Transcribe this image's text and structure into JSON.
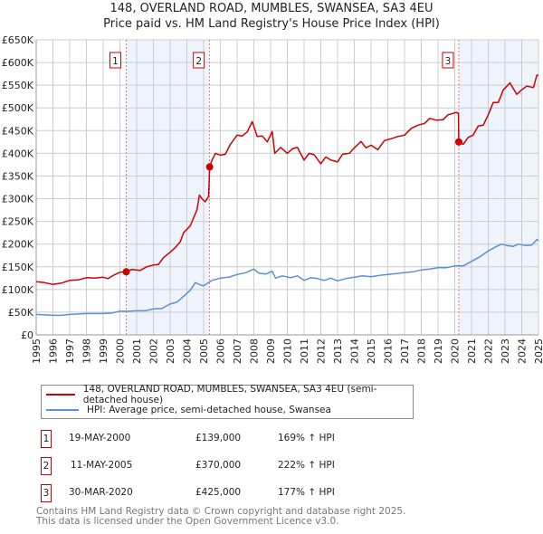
{
  "title": "148, OVERLAND ROAD, MUMBLES, SWANSEA, SA3 4EU",
  "subtitle": "Price paid vs. HM Land Registry's House Price Index (HPI)",
  "colors": {
    "property": "#cc0000",
    "hpi": "#5b8fd6",
    "shade": "#eef3fc",
    "grid": "#cccccc"
  },
  "chart_data": {
    "type": "line",
    "xlim": [
      1995,
      2025
    ],
    "ylim": [
      0,
      650000
    ],
    "yticks": [
      0,
      50000,
      100000,
      150000,
      200000,
      250000,
      300000,
      350000,
      400000,
      450000,
      500000,
      550000,
      600000,
      650000
    ],
    "ytick_labels": [
      "£0",
      "£50K",
      "£100K",
      "£150K",
      "£200K",
      "£250K",
      "£300K",
      "£350K",
      "£400K",
      "£450K",
      "£500K",
      "£550K",
      "£600K",
      "£650K"
    ],
    "xtick_labels": [
      "1995",
      "1996",
      "1997",
      "1998",
      "1999",
      "2000",
      "2001",
      "2002",
      "2003",
      "2004",
      "2005",
      "2006",
      "2007",
      "2008",
      "2009",
      "2010",
      "2011",
      "2012",
      "2013",
      "2014",
      "2015",
      "2016",
      "2017",
      "2018",
      "2019",
      "2020",
      "2021",
      "2022",
      "2023",
      "2024",
      "2025"
    ],
    "grid": true,
    "shaded_ranges": [
      [
        2000.38,
        2005.36
      ],
      [
        2020.24,
        2025
      ]
    ],
    "series": [
      {
        "name": "148, OVERLAND ROAD, MUMBLES, SWANSEA, SA3 4EU (semi-detached house)",
        "color": "#cc0000",
        "points": [
          [
            1995,
            117
          ],
          [
            1995.5,
            115
          ],
          [
            1996,
            111
          ],
          [
            1996.5,
            114
          ],
          [
            1997,
            120
          ],
          [
            1997.5,
            121
          ],
          [
            1998,
            126
          ],
          [
            1998.5,
            125
          ],
          [
            1999,
            127
          ],
          [
            1999.3,
            124
          ],
          [
            1999.6,
            131
          ],
          [
            2000,
            138
          ],
          [
            2000.38,
            139
          ],
          [
            2000.7,
            144
          ],
          [
            2001.2,
            142
          ],
          [
            2001.6,
            150
          ],
          [
            2002,
            154
          ],
          [
            2002.3,
            155
          ],
          [
            2002.6,
            170
          ],
          [
            2003,
            182
          ],
          [
            2003.3,
            192
          ],
          [
            2003.6,
            205
          ],
          [
            2003.8,
            225
          ],
          [
            2004.2,
            240
          ],
          [
            2004.4,
            258
          ],
          [
            2004.6,
            275
          ],
          [
            2004.75,
            308
          ],
          [
            2004.9,
            300
          ],
          [
            2005.1,
            293
          ],
          [
            2005.3,
            305
          ],
          [
            2005.36,
            370
          ],
          [
            2005.5,
            385
          ],
          [
            2005.7,
            400
          ],
          [
            2006,
            396
          ],
          [
            2006.3,
            398
          ],
          [
            2006.6,
            420
          ],
          [
            2007,
            440
          ],
          [
            2007.3,
            438
          ],
          [
            2007.6,
            447
          ],
          [
            2007.9,
            470
          ],
          [
            2008.2,
            437
          ],
          [
            2008.5,
            438
          ],
          [
            2008.8,
            425
          ],
          [
            2009.1,
            448
          ],
          [
            2009.25,
            400
          ],
          [
            2009.6,
            413
          ],
          [
            2010,
            400
          ],
          [
            2010.3,
            410
          ],
          [
            2010.6,
            413
          ],
          [
            2011,
            385
          ],
          [
            2011.3,
            400
          ],
          [
            2011.6,
            397
          ],
          [
            2012,
            377
          ],
          [
            2012.3,
            392
          ],
          [
            2012.6,
            385
          ],
          [
            2013,
            381
          ],
          [
            2013.3,
            398
          ],
          [
            2013.7,
            400
          ],
          [
            2014,
            412
          ],
          [
            2014.4,
            426
          ],
          [
            2014.7,
            412
          ],
          [
            2015,
            418
          ],
          [
            2015.4,
            408
          ],
          [
            2015.8,
            428
          ],
          [
            2016.2,
            432
          ],
          [
            2016.6,
            437
          ],
          [
            2017,
            440
          ],
          [
            2017.4,
            455
          ],
          [
            2017.8,
            462
          ],
          [
            2018.2,
            466
          ],
          [
            2018.5,
            477
          ],
          [
            2018.9,
            473
          ],
          [
            2019.3,
            474
          ],
          [
            2019.6,
            485
          ],
          [
            2020.1,
            490
          ],
          [
            2020.22,
            488
          ],
          [
            2020.24,
            425
          ],
          [
            2020.5,
            420
          ],
          [
            2020.8,
            435
          ],
          [
            2021.1,
            440
          ],
          [
            2021.4,
            460
          ],
          [
            2021.7,
            462
          ],
          [
            2022,
            485
          ],
          [
            2022.3,
            512
          ],
          [
            2022.6,
            512
          ],
          [
            2022.9,
            540
          ],
          [
            2023.3,
            555
          ],
          [
            2023.7,
            530
          ],
          [
            2024,
            540
          ],
          [
            2024.3,
            548
          ],
          [
            2024.7,
            545
          ],
          [
            2024.9,
            572
          ],
          [
            2025,
            572
          ]
        ]
      },
      {
        "name": "HPI: Average price, semi-detached house, Swansea",
        "color": "#5b8fd6",
        "points": [
          [
            1995,
            45
          ],
          [
            1995.5,
            44
          ],
          [
            1996,
            43
          ],
          [
            1996.5,
            43
          ],
          [
            1997,
            45
          ],
          [
            1998,
            47
          ],
          [
            1999,
            47
          ],
          [
            1999.5,
            48
          ],
          [
            2000,
            52
          ],
          [
            2000.5,
            52
          ],
          [
            2001,
            53
          ],
          [
            2001.5,
            53
          ],
          [
            2002,
            57
          ],
          [
            2002.5,
            58
          ],
          [
            2003,
            68
          ],
          [
            2003.4,
            72
          ],
          [
            2003.8,
            85
          ],
          [
            2004.2,
            98
          ],
          [
            2004.5,
            115
          ],
          [
            2004.8,
            110
          ],
          [
            2005,
            108
          ],
          [
            2005.5,
            120
          ],
          [
            2006,
            125
          ],
          [
            2006.5,
            127
          ],
          [
            2007,
            133
          ],
          [
            2007.5,
            137
          ],
          [
            2008,
            145
          ],
          [
            2008.3,
            136
          ],
          [
            2008.7,
            134
          ],
          [
            2009.1,
            140
          ],
          [
            2009.3,
            125
          ],
          [
            2009.7,
            130
          ],
          [
            2010.2,
            126
          ],
          [
            2010.6,
            130
          ],
          [
            2011,
            120
          ],
          [
            2011.4,
            126
          ],
          [
            2011.8,
            124
          ],
          [
            2012.2,
            120
          ],
          [
            2012.6,
            125
          ],
          [
            2013,
            119
          ],
          [
            2013.5,
            124
          ],
          [
            2014,
            127
          ],
          [
            2014.5,
            130
          ],
          [
            2015,
            128
          ],
          [
            2015.5,
            131
          ],
          [
            2016,
            133
          ],
          [
            2016.5,
            135
          ],
          [
            2017,
            137
          ],
          [
            2017.5,
            139
          ],
          [
            2018,
            143
          ],
          [
            2018.5,
            145
          ],
          [
            2019,
            148
          ],
          [
            2019.5,
            148
          ],
          [
            2020,
            152
          ],
          [
            2020.5,
            152
          ],
          [
            2021,
            162
          ],
          [
            2021.5,
            172
          ],
          [
            2022,
            185
          ],
          [
            2022.5,
            195
          ],
          [
            2022.8,
            200
          ],
          [
            2023.1,
            197
          ],
          [
            2023.5,
            195
          ],
          [
            2023.8,
            200
          ],
          [
            2024.2,
            197
          ],
          [
            2024.6,
            198
          ],
          [
            2024.9,
            210
          ],
          [
            2025,
            208
          ]
        ]
      }
    ],
    "sales": [
      {
        "label": "1",
        "x": 2000.38,
        "value": 139
      },
      {
        "label": "2",
        "x": 2005.36,
        "value": 370
      },
      {
        "label": "3",
        "x": 2020.24,
        "value": 425
      }
    ]
  },
  "legend": {
    "property": "148, OVERLAND ROAD, MUMBLES, SWANSEA, SA3 4EU (semi-detached house)",
    "hpi": "HPI: Average price, semi-detached house, Swansea"
  },
  "transactions": [
    {
      "num": "1",
      "date": "19-MAY-2000",
      "price": "£139,000",
      "hpi": "169% ↑ HPI"
    },
    {
      "num": "2",
      "date": "11-MAY-2005",
      "price": "£370,000",
      "hpi": "222% ↑ HPI"
    },
    {
      "num": "3",
      "date": "30-MAR-2020",
      "price": "£425,000",
      "hpi": "177% ↑ HPI"
    }
  ],
  "footer": {
    "line1": "Contains HM Land Registry data © Crown copyright and database right 2025.",
    "line2": "This data is licensed under the Open Government Licence v3.0."
  }
}
